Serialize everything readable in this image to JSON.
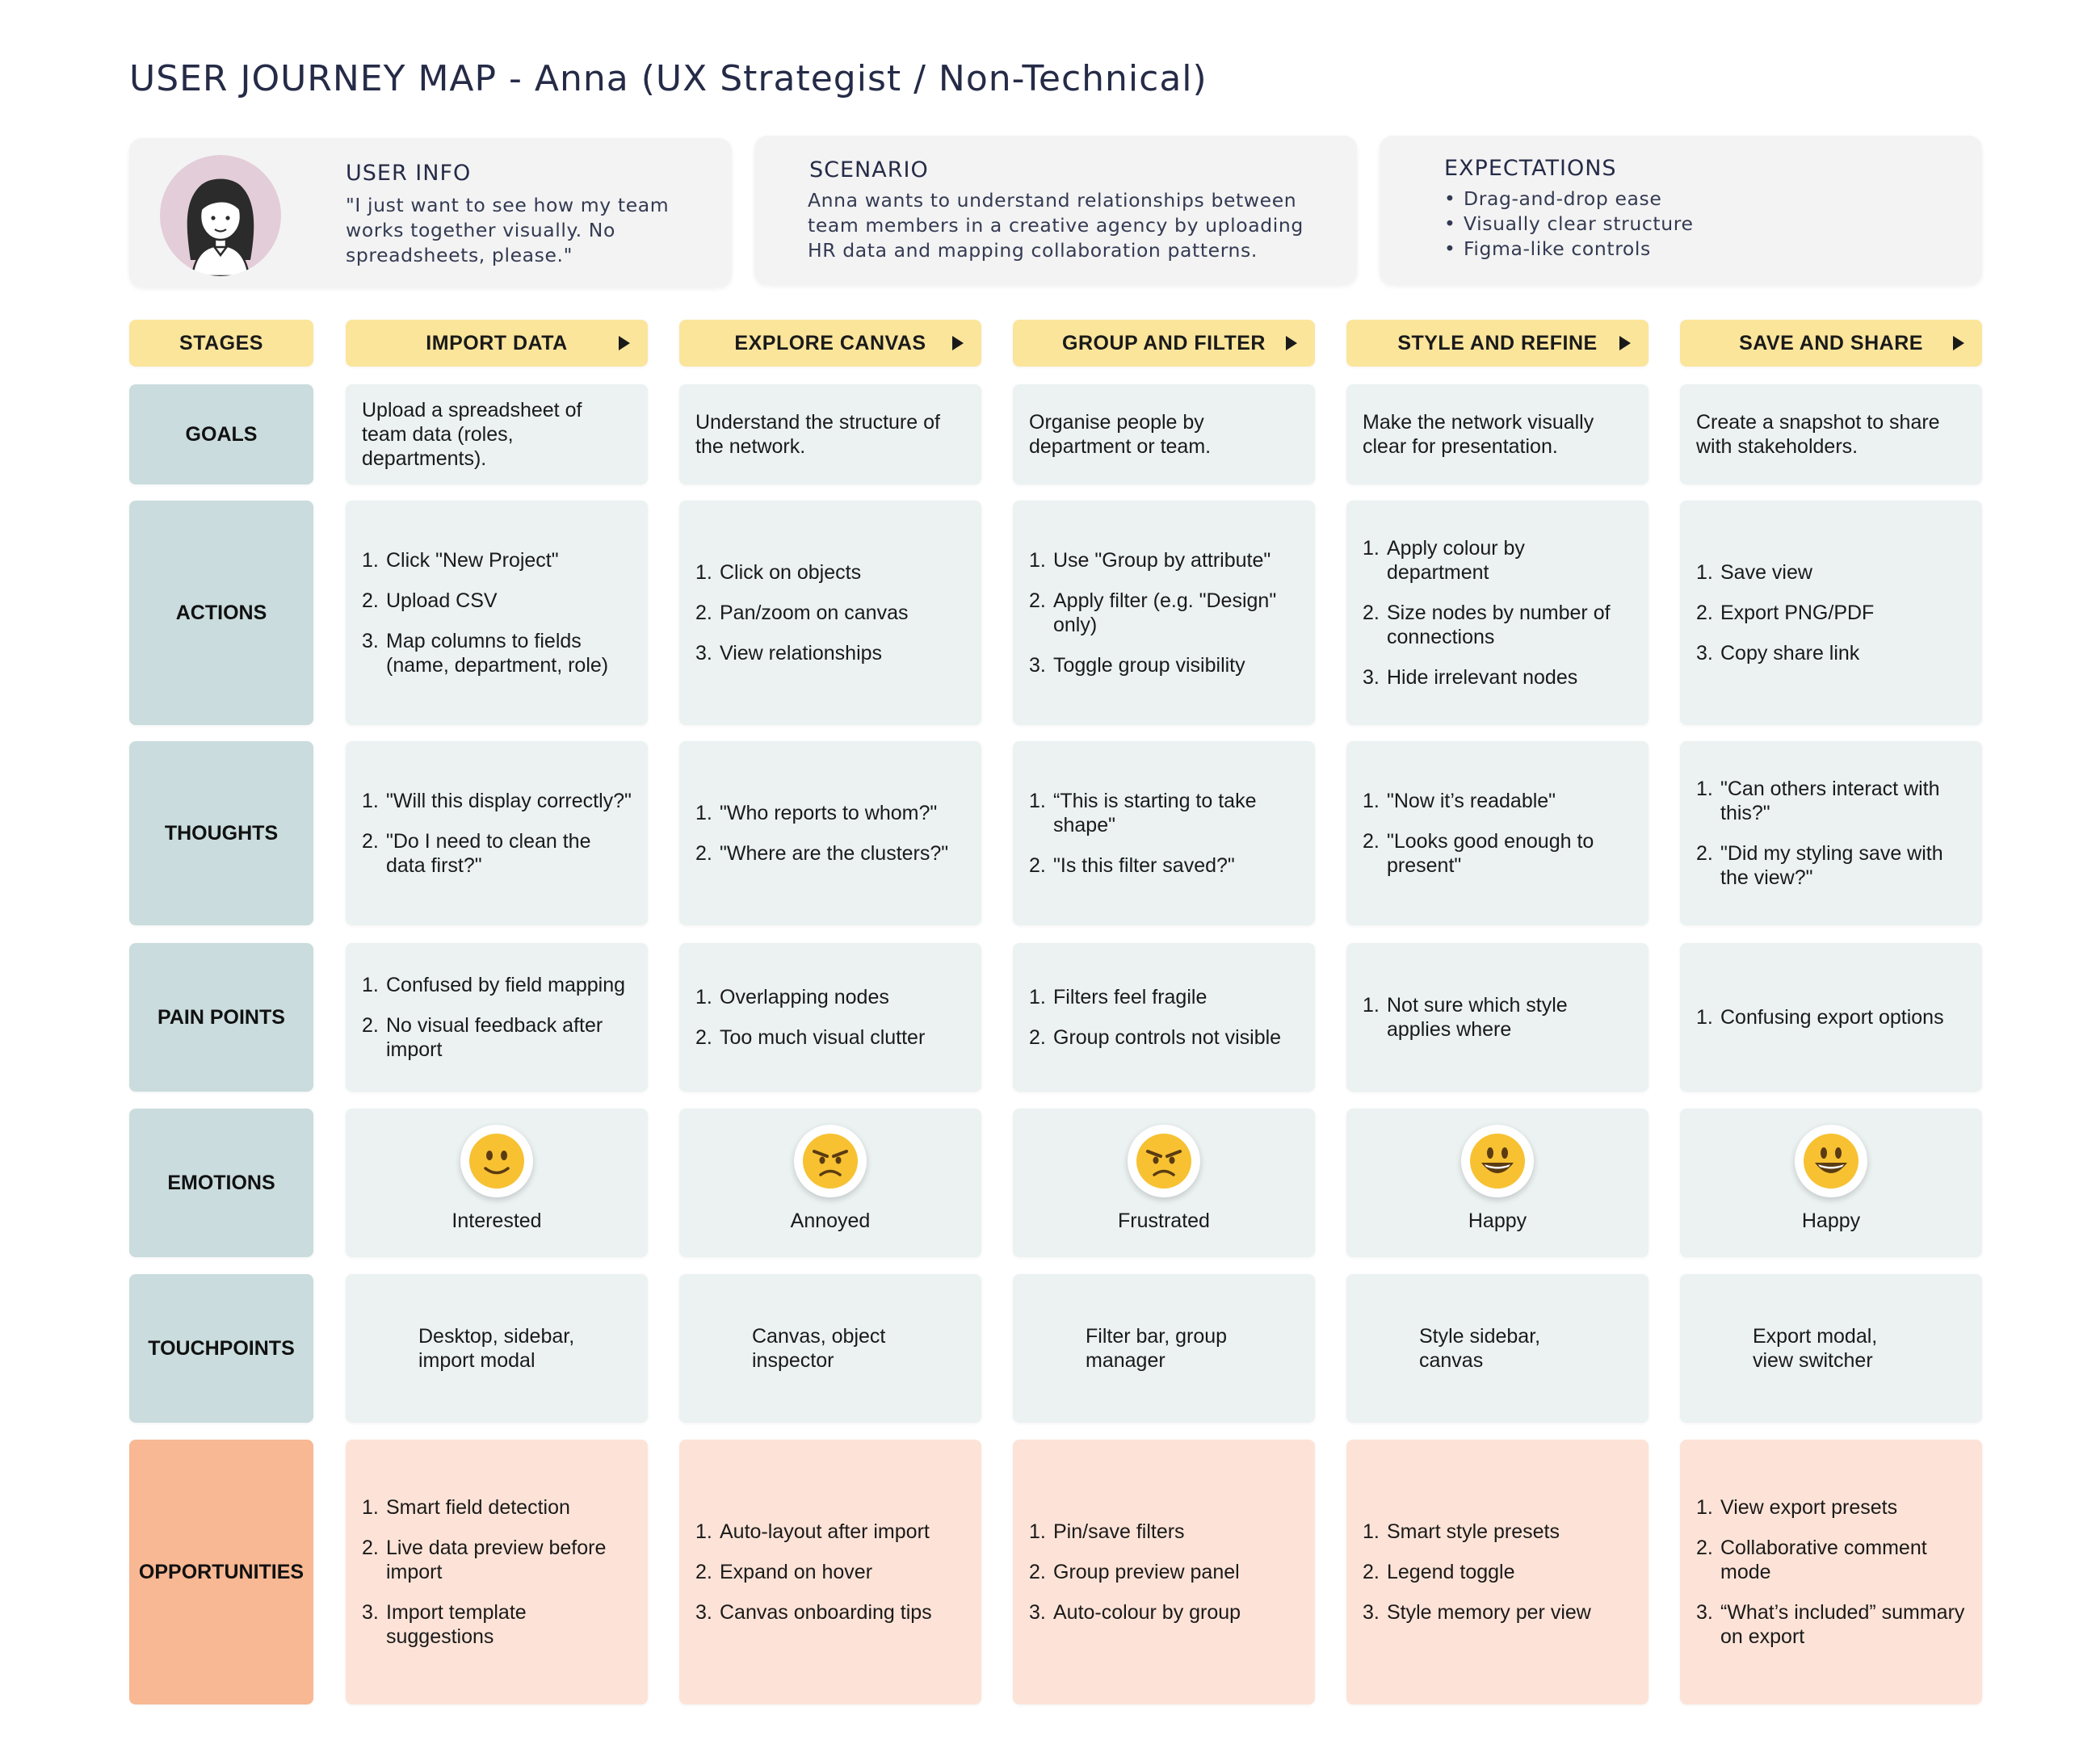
{
  "title": "USER JOURNEY MAP - Anna (UX Strategist / Non-Technical)",
  "user_info": {
    "heading": "USER INFO",
    "quote_lines": [
      "\"I just want to see how my team",
      "works together visually. No",
      "spreadsheets, please.\""
    ]
  },
  "scenario": {
    "heading": "SCENARIO",
    "lines": [
      "Anna wants to understand relationships between",
      "team members in a creative agency by uploading",
      "HR data and mapping collaboration patterns."
    ]
  },
  "expectations": {
    "heading": "EXPECTATIONS",
    "items": [
      "Drag-and-drop ease",
      "Visually clear structure",
      "Figma-like controls"
    ]
  },
  "rows": {
    "stages": "STAGES",
    "goals": "GOALS",
    "actions": "ACTIONS",
    "thoughts": "THOUGHTS",
    "pain_points": "PAIN POINTS",
    "emotions": "EMOTIONS",
    "touchpoints": "TOUCHPOINTS",
    "opportunities": "OPPORTUNITIES"
  },
  "stages": [
    {
      "name": "IMPORT DATA",
      "goal": "Upload a spreadsheet of team data (roles, departments).",
      "actions": [
        "Click \"New Project\"",
        "Upload CSV",
        "Map columns to fields (name, department, role)"
      ],
      "thoughts": [
        "\"Will this display correctly?\"",
        " \"Do I need to clean the data first?\""
      ],
      "pain_points": [
        "Confused by field mapping",
        " No visual feedback after import"
      ],
      "emotion": "Interested",
      "emotion_icon": "slightly-smiling-face-icon",
      "touchpoints": "Desktop, sidebar,\nimport modal",
      "opportunities": [
        "Smart field detection",
        "Live data preview before import",
        "Import template suggestions"
      ]
    },
    {
      "name": "EXPLORE CANVAS",
      "goal": "Understand the structure of the network.",
      "actions": [
        "Click on objects",
        " Pan/zoom on canvas",
        " View relationships"
      ],
      "thoughts": [
        "\"Who reports to whom?\"",
        " \"Where are the clusters?\""
      ],
      "pain_points": [
        "Overlapping nodes",
        " Too much visual clutter"
      ],
      "emotion": "Annoyed",
      "emotion_icon": "angry-face-icon",
      "touchpoints": "Canvas, object\ninspector",
      "opportunities": [
        "Auto-layout after import",
        "Expand on hover",
        "Canvas onboarding tips"
      ]
    },
    {
      "name": "GROUP AND FILTER",
      "goal": "Organise people by department or team.",
      "actions": [
        "Use \"Group by attribute\"",
        "Apply filter (e.g. \"Design\" only)",
        "Toggle group visibility"
      ],
      "thoughts": [
        "“This is starting to take shape\"",
        " \"Is this filter saved?\""
      ],
      "pain_points": [
        "Filters feel fragile",
        "Group controls not visible"
      ],
      "emotion": "Frustrated",
      "emotion_icon": "angry-face-icon",
      "touchpoints": "Filter bar, group\nmanager",
      "opportunities": [
        "Pin/save filters",
        "Group preview panel",
        "Auto-colour by group"
      ]
    },
    {
      "name": "STYLE AND REFINE",
      "goal": "Make the network visually clear for presentation.",
      "actions": [
        "Apply colour by department",
        "Size nodes by number of connections",
        "Hide irrelevant nodes"
      ],
      "thoughts": [
        "\"Now it’s readable\"",
        " \"Looks good enough to present\""
      ],
      "pain_points": [
        "Not sure which style applies where"
      ],
      "emotion": "Happy",
      "emotion_icon": "grinning-face-icon",
      "touchpoints": "Style sidebar,\ncanvas",
      "opportunities": [
        "Smart style presets",
        "Legend toggle",
        "Style memory per view"
      ]
    },
    {
      "name": "SAVE AND SHARE",
      "goal": "Create a snapshot to share with stakeholders.",
      "actions": [
        "Save view",
        "Export PNG/PDF",
        "Copy share link"
      ],
      "thoughts": [
        "\"Can others interact with this?\"",
        "\"Did my styling save with the view?\""
      ],
      "pain_points": [
        "Confusing export options"
      ],
      "emotion": "Happy",
      "emotion_icon": "grinning-face-icon",
      "touchpoints": "Export modal,\nview switcher",
      "opportunities": [
        "View export presets",
        "Collaborative comment mode",
        "“What’s included” summary on export"
      ]
    }
  ],
  "colors": {
    "stage": "#fbe59b",
    "row_header": "#cadcdd",
    "content": "#ebf2f1",
    "opp_header": "#f7b893",
    "opp_content": "#fde3d7",
    "emoji_face": "#f7c132"
  }
}
